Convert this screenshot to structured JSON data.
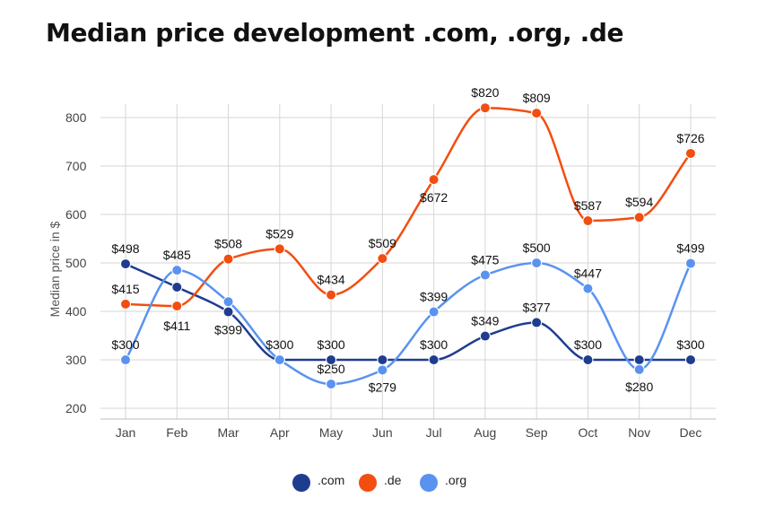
{
  "chart_data": {
    "type": "line",
    "title": "Median price development .com, .org, .de",
    "xlabel": "",
    "ylabel": "Median price in $",
    "categories": [
      "Jan",
      "Feb",
      "Mar",
      "Apr",
      "May",
      "Jun",
      "Jul",
      "Aug",
      "Sep",
      "Oct",
      "Nov",
      "Dec"
    ],
    "ylim": [
      200,
      800
    ],
    "yticks": [
      200,
      300,
      400,
      500,
      600,
      700,
      800
    ],
    "grid": true,
    "legend_position": "bottom",
    "smooth": true,
    "series": [
      {
        "name": ".com",
        "color": "#1f3d8f",
        "values": [
          498,
          450,
          399,
          300,
          300,
          300,
          300,
          349,
          377,
          300,
          300,
          300
        ],
        "labels": [
          "$498",
          null,
          "$399",
          null,
          null,
          null,
          null,
          "$349",
          "$377",
          null,
          null,
          null
        ]
      },
      {
        "name": ".de",
        "color": "#f24e10",
        "values": [
          415,
          411,
          508,
          529,
          434,
          509,
          672,
          820,
          809,
          587,
          594,
          726
        ],
        "labels": [
          "$415",
          "$411",
          "$508",
          "$529",
          "$434",
          "$509",
          "$672",
          "$820",
          "$809",
          "$587",
          "$594",
          "$726"
        ]
      },
      {
        "name": ".org",
        "color": "#5a93ef",
        "values": [
          300,
          485,
          420,
          300,
          250,
          279,
          399,
          475,
          500,
          447,
          280,
          499
        ],
        "labels": [
          "$300",
          "$485",
          null,
          "$300",
          "$250",
          "$279",
          "$399",
          "$475",
          "$500",
          "$447",
          "$280",
          "$499"
        ]
      }
    ],
    "extra_labels": [
      {
        "text": "$300",
        "x": "May",
        "y": 300,
        "series": ".com"
      },
      {
        "text": "$300",
        "x": "Jul",
        "y": 300,
        "series": ".com"
      },
      {
        "text": "$300",
        "x": "Oct",
        "y": 300,
        "series": ".com"
      },
      {
        "text": "$300",
        "x": "Dec",
        "y": 300,
        "series": ".com"
      }
    ]
  }
}
